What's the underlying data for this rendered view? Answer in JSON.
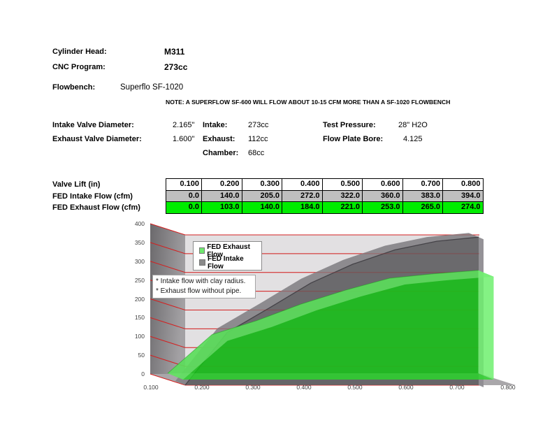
{
  "header": {
    "cylinder_head_label": "Cylinder Head:",
    "cylinder_head_value": "M311",
    "cnc_program_label": "CNC Program:",
    "cnc_program_value": "273cc",
    "flowbench_label": "Flowbench:",
    "flowbench_value": "Superflo SF-1020",
    "note": "NOTE: A SUPERFLOW SF-600 WILL FLOW ABOUT 10-15 CFM MORE THAN A SF-1020 FLOWBENCH"
  },
  "specs": {
    "intake_valve_diameter_label": "Intake Valve Diameter:",
    "intake_valve_diameter_value": "2.165\"",
    "exhaust_valve_diameter_label": "Exhaust Valve Diameter:",
    "exhaust_valve_diameter_value": "1.600\"",
    "intake_label": "Intake:",
    "intake_value": "273cc",
    "exhaust_label": "Exhaust:",
    "exhaust_value": "112cc",
    "chamber_label": "Chamber:",
    "chamber_value": "68cc",
    "test_pressure_label": "Test Pressure:",
    "test_pressure_value": "28\" H2O",
    "flow_plate_bore_label": "Flow Plate Bore:",
    "flow_plate_bore_value": "4.125"
  },
  "flow_table": {
    "row_labels": [
      "Valve Lift (in)",
      "FED Intake Flow (cfm)",
      "FED Exhaust Flow (cfm)"
    ],
    "lift_values": [
      "0.100",
      "0.200",
      "0.300",
      "0.400",
      "0.500",
      "0.600",
      "0.700",
      "0.800"
    ],
    "intake_values": [
      "0.0",
      "140.0",
      "205.0",
      "272.0",
      "322.0",
      "360.0",
      "383.0",
      "394.0"
    ],
    "exhaust_values": [
      "0.0",
      "103.0",
      "140.0",
      "184.0",
      "221.0",
      "253.0",
      "265.0",
      "274.0"
    ],
    "row_colors": {
      "lift": "#FFFFFF",
      "intake": "#BFBFBF",
      "exhaust": "#00ED00"
    }
  },
  "chart_data": {
    "type": "area",
    "title": "",
    "x": [
      0.1,
      0.2,
      0.3,
      0.4,
      0.5,
      0.6,
      0.7,
      0.8
    ],
    "x_labels": [
      "0.100",
      "0.200",
      "0.300",
      "0.400",
      "0.500",
      "0.600",
      "0.700",
      "0.800"
    ],
    "series": [
      {
        "name": "FED Intake Flow",
        "values": [
          0,
          140,
          205,
          272,
          322,
          360,
          383,
          394
        ],
        "color": "#858386"
      },
      {
        "name": "FED Exhaust Flow",
        "values": [
          0,
          103,
          140,
          184,
          221,
          253,
          265,
          274
        ],
        "color": "#2ecc2e"
      }
    ],
    "ylim": [
      0,
      400
    ],
    "ytick_step": 50,
    "ytick_labels": [
      "400",
      "350",
      "300",
      "250",
      "200",
      "150",
      "100",
      "50",
      "0"
    ],
    "legend": [
      "FED Exhaust Flow",
      "FED Intake Flow"
    ],
    "legend_colors": [
      "#6fe96f",
      "#8a8a8a"
    ],
    "annotation_lines": [
      "* Intake flow with clay radius.",
      "* Exhaust flow without pipe."
    ],
    "grid": true,
    "gridline_color": "#d42020",
    "back_wall_color": "#e2e0e2",
    "side_wall_colors": [
      "#6b696c",
      "#a3a1a4"
    ],
    "floor_color": "#a9a7aa"
  }
}
